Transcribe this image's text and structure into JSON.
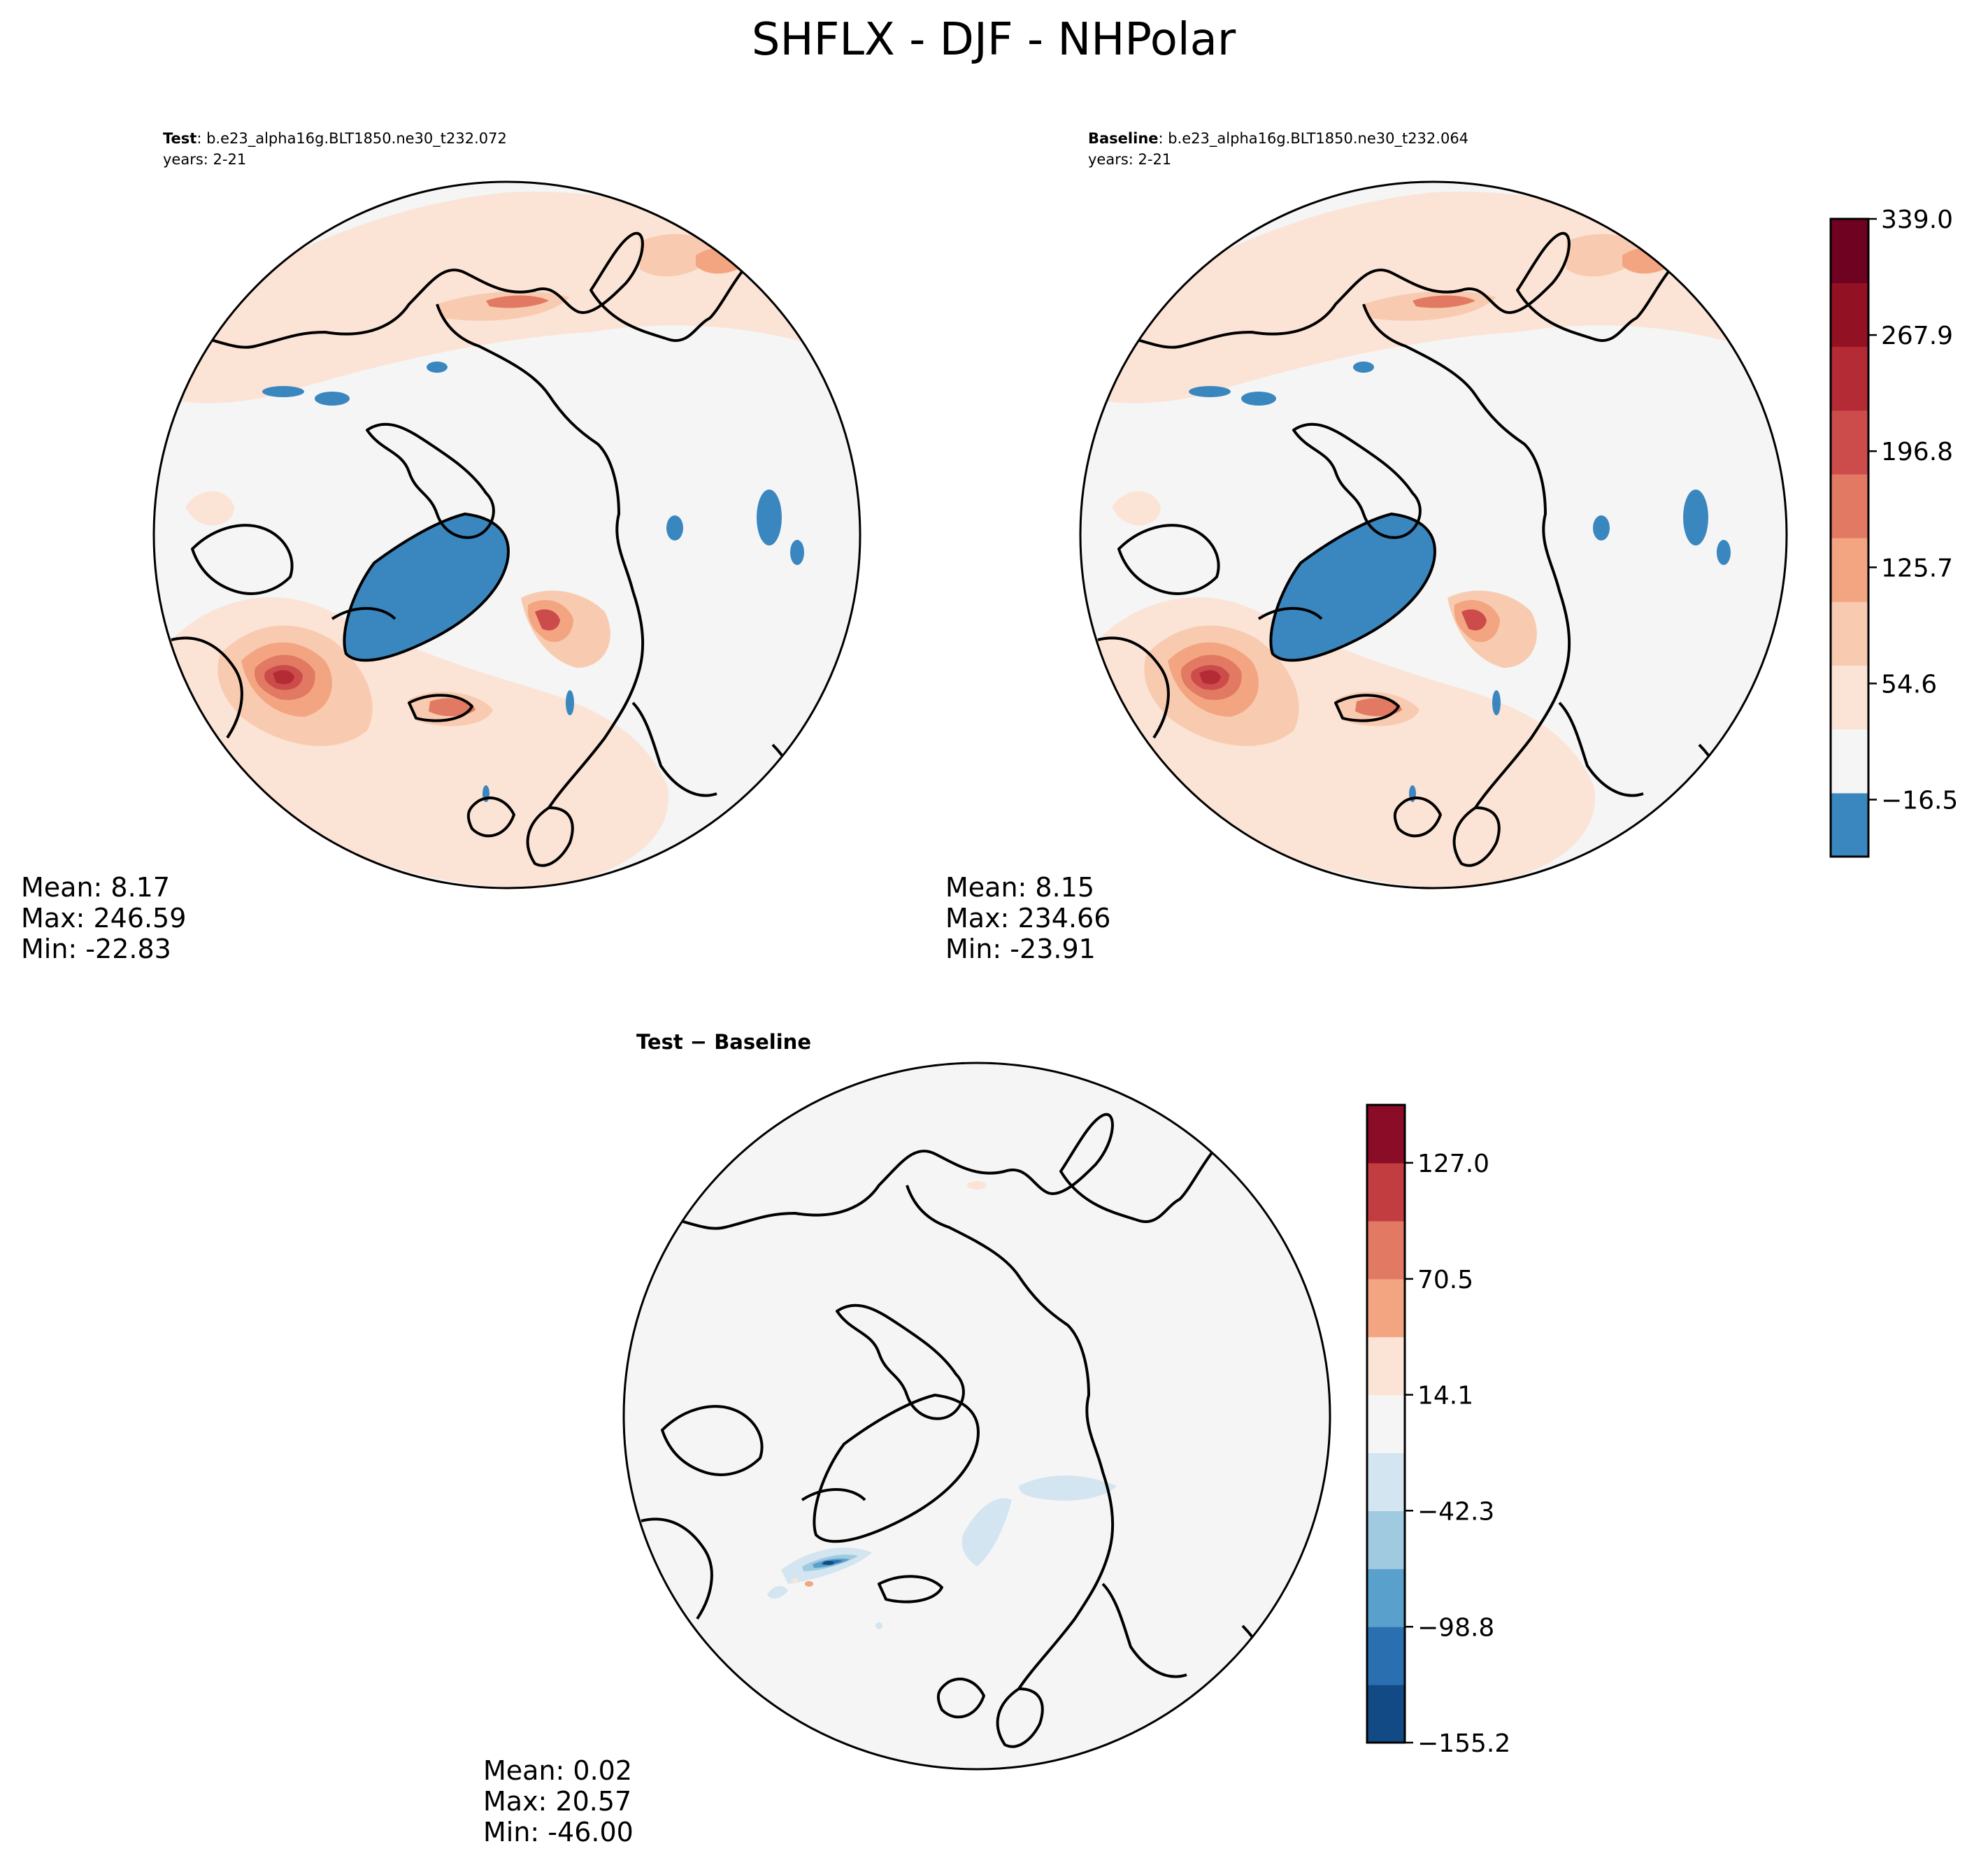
{
  "figure": {
    "title": "SHFLX - DJF - NHPolar"
  },
  "panels": {
    "test": {
      "label": "Test",
      "case": ": b.e23_alpha16g.BLT1850.ne30_t232.072",
      "years": "years: 2-21",
      "stats": {
        "mean": "Mean:  8.17",
        "max": "Max: 246.59",
        "min": "Min: -22.83"
      }
    },
    "baseline": {
      "label": "Baseline",
      "case": ": b.e23_alpha16g.BLT1850.ne30_t232.064",
      "years": "years: 2-21",
      "stats": {
        "mean": "Mean:  8.15",
        "max": "Max: 234.66",
        "min": "Min: -23.91"
      }
    },
    "diff": {
      "label": "Test − Baseline",
      "stats": {
        "mean": "Mean:  0.02",
        "max": "Max: 20.57",
        "min": "Min: -46.00"
      }
    }
  },
  "chart_data": [
    {
      "type": "heatmap",
      "title": "Test",
      "projection": "north-polar-stereographic",
      "colorbar": {
        "levels": [
          -16.5,
          54.6,
          125.7,
          196.8,
          267.9,
          339.0
        ],
        "tick_labels": [
          "−16.5",
          "54.6",
          "125.7",
          "196.8",
          "267.9",
          "339.0"
        ]
      },
      "mean": 8.17,
      "max": 246.59,
      "min": -22.83
    },
    {
      "type": "heatmap",
      "title": "Baseline",
      "projection": "north-polar-stereographic",
      "colorbar": {
        "levels": [
          -16.5,
          54.6,
          125.7,
          196.8,
          267.9,
          339.0
        ],
        "tick_labels": [
          "−16.5",
          "54.6",
          "125.7",
          "196.8",
          "267.9",
          "339.0"
        ]
      },
      "mean": 8.15,
      "max": 234.66,
      "min": -23.91
    },
    {
      "type": "heatmap",
      "title": "Test − Baseline",
      "projection": "north-polar-stereographic",
      "colorbar": {
        "levels": [
          -155.2,
          -98.8,
          -42.3,
          14.1,
          70.5,
          127.0
        ],
        "tick_labels": [
          "−155.2",
          "−98.8",
          "−42.3",
          "14.1",
          "70.5",
          "127.0"
        ]
      },
      "mean": 0.02,
      "max": 20.57,
      "min": -46.0
    }
  ],
  "colorbars": {
    "main": {
      "colors": [
        "#3a87c0",
        "#f5f5f5",
        "#fbe4d6",
        "#f8cbb0",
        "#f3a582",
        "#e27963",
        "#cc4c4b",
        "#b42a35",
        "#921123",
        "#6e0220"
      ]
    },
    "diff": {
      "colors": [
        "#114a84",
        "#2a70b1",
        "#5aa0cd",
        "#a0cae0",
        "#d3e5f0",
        "#f5f5f5",
        "#fbe4d6",
        "#f3a582",
        "#e27963",
        "#c13d40",
        "#8a0c26"
      ]
    }
  }
}
